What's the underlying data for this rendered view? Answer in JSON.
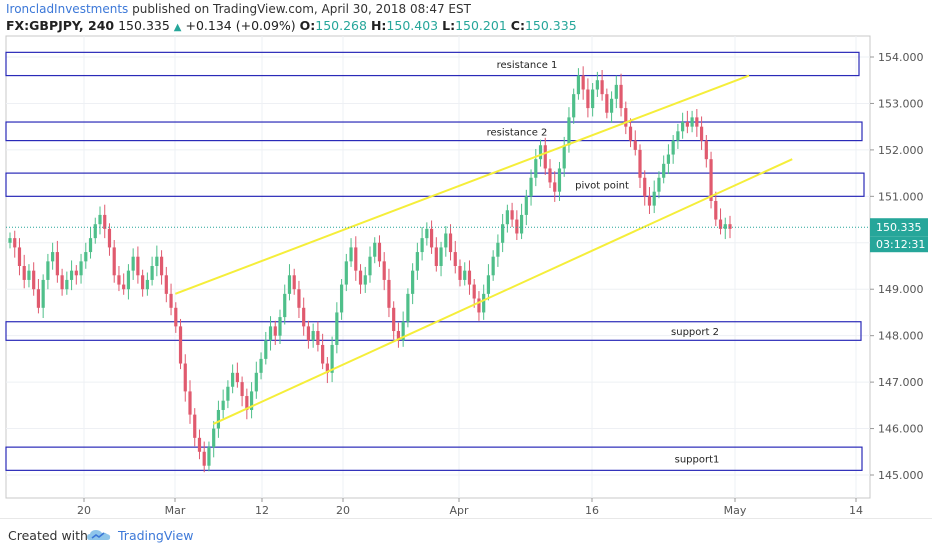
{
  "header": {
    "author": "IroncladInvestments",
    "published": " published on TradingView.com, April 30, 2018 08:47 EST"
  },
  "symbol": {
    "name": "FX:GBPJPY, 240",
    "last": "150.335",
    "change": "+0.134 (+0.09%)",
    "o_label": "O:",
    "o": "150.268",
    "h_label": "H:",
    "h": "150.403",
    "l_label": "L:",
    "l": "150.201",
    "c_label": "C:",
    "c": "150.335"
  },
  "footer": {
    "created_with": "Created with",
    "brand": "TradingView"
  },
  "colors": {
    "up": "#26a69a",
    "up_candle": "#4fbf8a",
    "down_candle": "#e05a6e",
    "zone": "#2a2ab8",
    "channel": "#f5ee3a",
    "price_tag": "#26a69a",
    "axis_text": "#555555",
    "grid": "#eef0f4"
  },
  "chart_data": {
    "type": "candlestick",
    "title": "FX:GBPJPY, 240",
    "y_ticks": [
      "154.000",
      "153.000",
      "152.000",
      "151.000",
      "150.000",
      "149.000",
      "148.000",
      "147.000",
      "146.000",
      "145.000"
    ],
    "ylim": [
      144.8,
      154.3
    ],
    "x_ticks": [
      "20",
      "Mar",
      "12",
      "20",
      "Apr",
      "16",
      "May",
      "14"
    ],
    "current_price": "150.335",
    "countdown": "03:12:31",
    "zones": [
      {
        "label": "resistance 1",
        "low": 153.6,
        "high": 154.1
      },
      {
        "label": "resistance 2",
        "low": 152.2,
        "high": 152.6
      },
      {
        "label": "pivot point",
        "low": 151.0,
        "high": 151.5
      },
      {
        "label": "support 2",
        "low": 147.9,
        "high": 148.3
      },
      {
        "label": "support1",
        "low": 145.1,
        "high": 145.6
      }
    ],
    "channel_lines": [
      {
        "from": [
          0.196,
          148.9
        ],
        "to": [
          0.86,
          153.6
        ]
      },
      {
        "from": [
          0.24,
          146.1
        ],
        "to": [
          0.91,
          151.8
        ]
      }
    ],
    "closes": [
      150.1,
      149.9,
      149.5,
      149.2,
      149.4,
      149.0,
      148.6,
      149.2,
      149.6,
      149.8,
      149.3,
      149.0,
      149.2,
      149.4,
      149.3,
      149.6,
      149.8,
      150.1,
      150.4,
      150.6,
      150.3,
      149.9,
      149.3,
      149.1,
      149.0,
      149.4,
      149.7,
      149.3,
      149.0,
      149.2,
      149.5,
      149.7,
      149.3,
      148.9,
      148.6,
      148.2,
      147.4,
      146.8,
      146.3,
      145.8,
      145.5,
      145.2,
      145.6,
      146.0,
      146.4,
      146.6,
      146.9,
      147.2,
      147.0,
      146.7,
      146.4,
      146.8,
      147.2,
      147.5,
      147.9,
      148.2,
      148.0,
      148.4,
      148.9,
      149.3,
      149.0,
      148.6,
      148.2,
      147.9,
      148.1,
      147.8,
      147.4,
      147.2,
      147.8,
      148.5,
      149.1,
      149.6,
      149.9,
      149.4,
      149.1,
      149.3,
      149.7,
      150.0,
      149.6,
      149.2,
      148.6,
      148.1,
      147.9,
      148.3,
      148.9,
      149.4,
      149.8,
      150.1,
      150.3,
      149.9,
      149.5,
      149.9,
      150.2,
      149.8,
      149.5,
      149.2,
      149.4,
      149.1,
      148.8,
      148.5,
      148.9,
      149.3,
      149.7,
      150.0,
      150.4,
      150.7,
      150.5,
      150.2,
      150.6,
      151.0,
      151.4,
      151.8,
      152.1,
      151.6,
      151.3,
      151.1,
      151.6,
      152.1,
      152.7,
      153.2,
      153.6,
      153.3,
      152.9,
      153.3,
      153.5,
      153.2,
      152.8,
      153.1,
      153.4,
      152.9,
      152.5,
      152.2,
      152.0,
      151.4,
      151.0,
      150.8,
      151.1,
      151.4,
      151.7,
      151.9,
      152.2,
      152.4,
      152.6,
      152.5,
      152.7,
      152.5,
      152.2,
      151.8,
      150.9,
      150.5,
      150.3,
      150.4,
      150.3
    ]
  }
}
